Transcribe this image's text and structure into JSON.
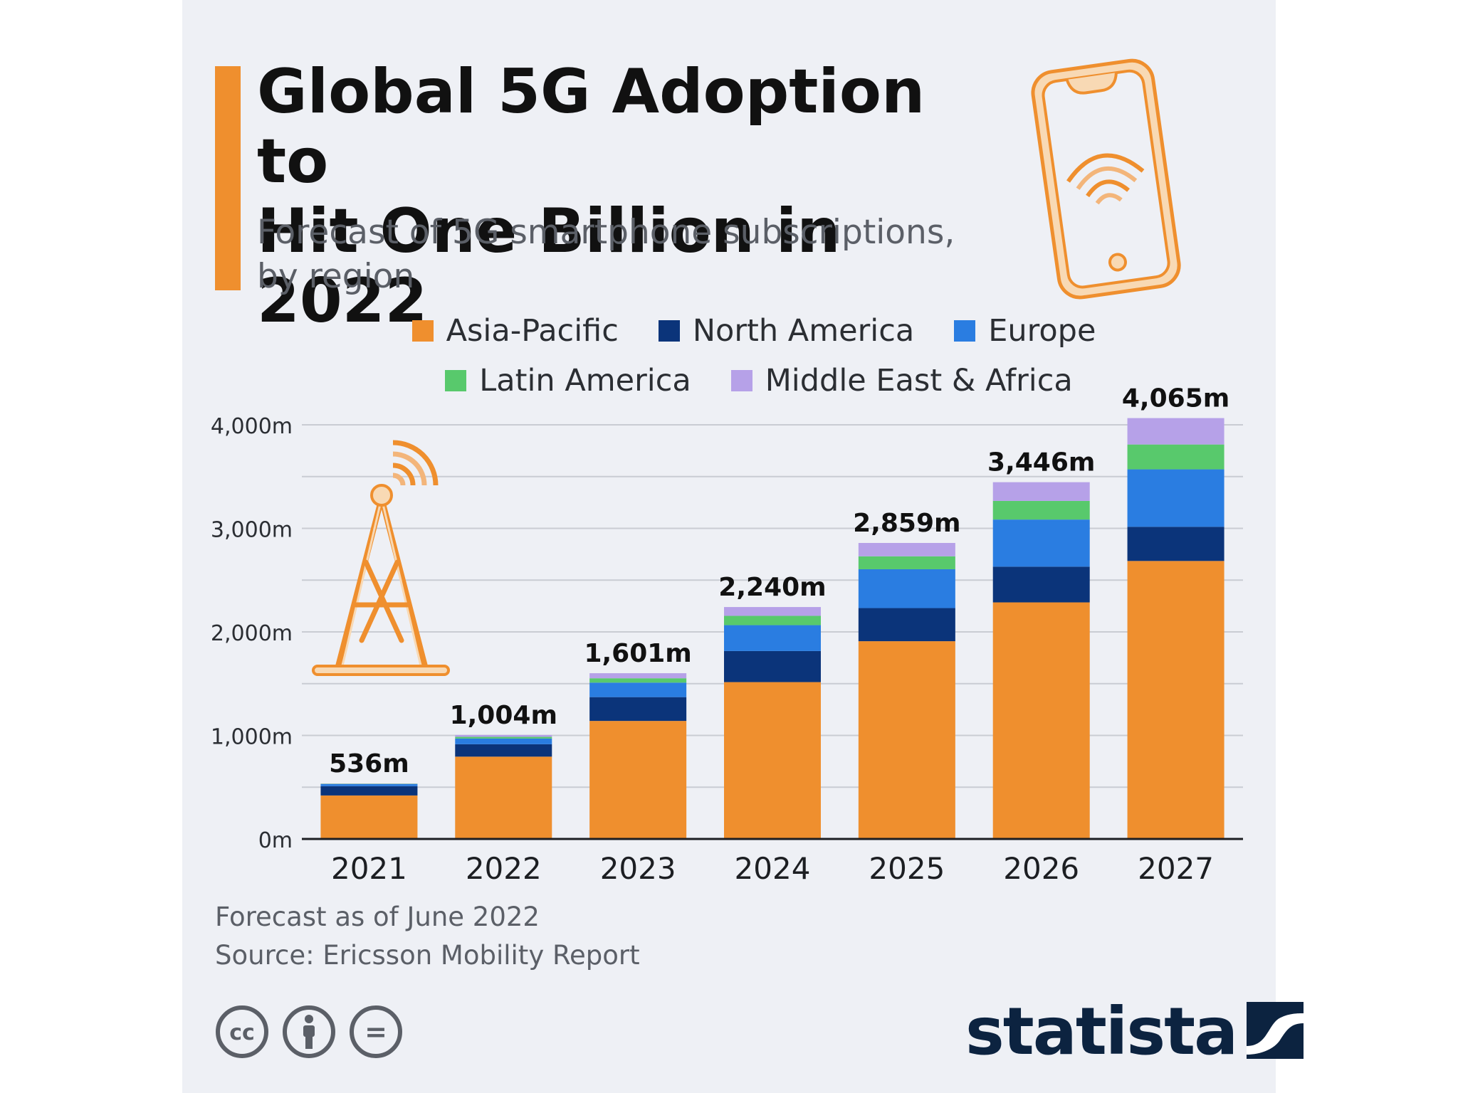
{
  "header": {
    "title_line1": "Global 5G Adoption to",
    "title_line2": "Hit One Billion in 2022",
    "subtitle_line1": "Forecast of 5G smartphone subscriptions,",
    "subtitle_line2": "by region",
    "phone_icon": "smartphone-wifi-icon",
    "tower_icon": "radio-tower-icon"
  },
  "colors": {
    "accent": "#ef8f2e",
    "background": "#eef0f5",
    "icon_stroke": "#ef8f2e",
    "icon_fill": "#f8d9b4"
  },
  "chart_data": {
    "type": "bar",
    "stacked": true,
    "title": "Global 5G Adoption to Hit One Billion in 2022",
    "subtitle": "Forecast of 5G smartphone subscriptions, by region",
    "xlabel": "",
    "ylabel": "",
    "unit_suffix": "m",
    "ylim": [
      0,
      4000
    ],
    "yticks": [
      0,
      1000,
      2000,
      3000,
      4000
    ],
    "ytick_labels": [
      "0m",
      "1,000m",
      "2,000m",
      "3,000m",
      "4,000m"
    ],
    "grid": true,
    "legend_position": "top-center",
    "categories": [
      "2021",
      "2022",
      "2023",
      "2024",
      "2025",
      "2026",
      "2027"
    ],
    "series": [
      {
        "name": "Asia-Pacific",
        "color": "#ef8f2e",
        "values": [
          420,
          795,
          1140,
          1515,
          1910,
          2285,
          2685
        ]
      },
      {
        "name": "North America",
        "color": "#0b347a",
        "values": [
          90,
          120,
          230,
          300,
          320,
          345,
          330
        ]
      },
      {
        "name": "Europe",
        "color": "#2a7de1",
        "values": [
          20,
          55,
          140,
          250,
          375,
          455,
          555
        ]
      },
      {
        "name": "Latin America",
        "color": "#58c96c",
        "values": [
          3,
          16,
          42,
          90,
          125,
          180,
          240
        ]
      },
      {
        "name": "Middle East & Africa",
        "color": "#b6a1e8",
        "values": [
          3,
          18,
          49,
          85,
          129,
          181,
          255
        ]
      }
    ],
    "totals": [
      536,
      1004,
      1601,
      2240,
      2859,
      3446,
      4065
    ],
    "total_labels": [
      "536m",
      "1,004m",
      "1,601m",
      "2,240m",
      "2,859m",
      "3,446m",
      "4,065m"
    ]
  },
  "footer": {
    "note": "Forecast as of June 2022",
    "source": "Source: Ericsson Mobility Report",
    "license_icons": [
      "creative-commons-icon",
      "attribution-icon",
      "no-derivatives-icon"
    ],
    "cc_label": "cc",
    "nd_label": "="
  },
  "brand": {
    "name": "statista",
    "logo_icon": "statista-logo-icon"
  }
}
